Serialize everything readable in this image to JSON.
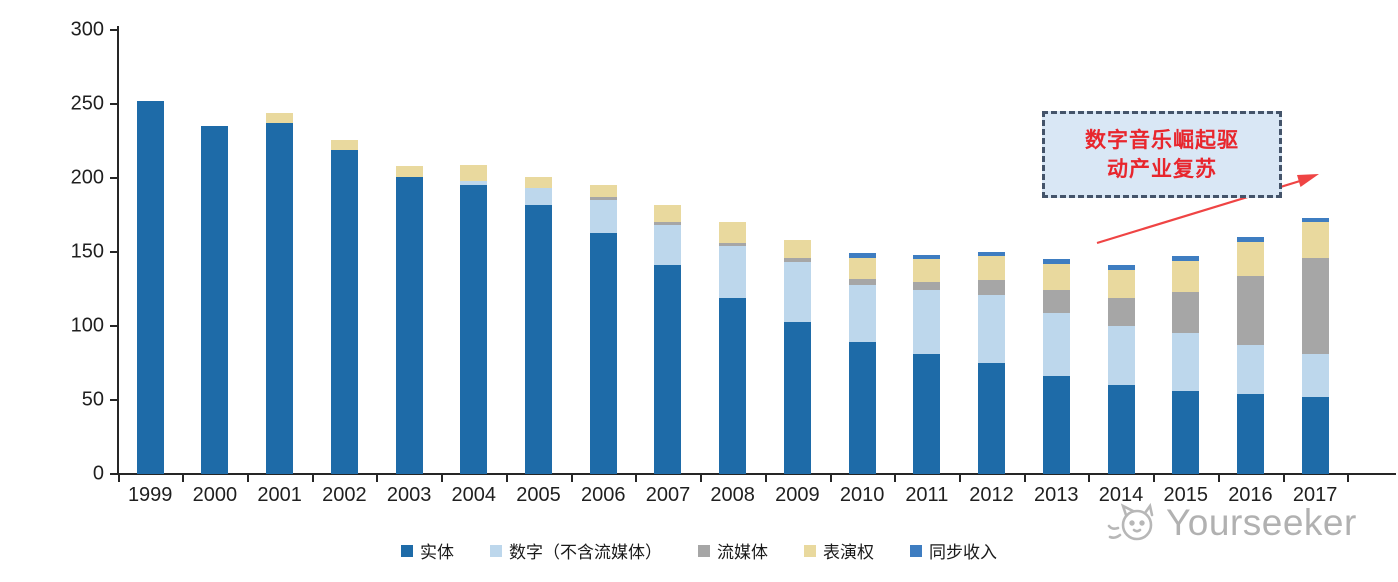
{
  "chart_data": {
    "type": "bar",
    "variant": "stacked",
    "title": "",
    "xlabel": "",
    "ylabel": "",
    "categories": [
      "1999",
      "2000",
      "2001",
      "2002",
      "2003",
      "2004",
      "2005",
      "2006",
      "2007",
      "2008",
      "2009",
      "2010",
      "2011",
      "2012",
      "2013",
      "2014",
      "2015",
      "2016",
      "2017"
    ],
    "series": [
      {
        "name": "实体",
        "color": "#1e6ba8",
        "values": [
          252,
          235,
          237,
          219,
          201,
          195,
          182,
          163,
          141,
          119,
          103,
          89,
          81,
          75,
          66,
          60,
          56,
          54,
          52
        ]
      },
      {
        "name": "数字（不含流媒体）",
        "color": "#bdd7ec",
        "values": [
          0,
          0,
          0,
          0,
          0,
          3,
          11,
          22,
          27,
          35,
          40,
          39,
          43,
          46,
          43,
          40,
          39,
          33,
          29
        ]
      },
      {
        "name": "流媒体",
        "color": "#a6a6a6",
        "values": [
          0,
          0,
          0,
          0,
          0,
          0,
          0,
          2,
          2,
          2,
          3,
          4,
          6,
          10,
          15,
          19,
          28,
          47,
          65
        ]
      },
      {
        "name": "表演权",
        "color": "#e9d99e",
        "values": [
          0,
          0,
          7,
          7,
          7,
          11,
          8,
          8,
          12,
          14,
          12,
          14,
          15,
          16,
          18,
          19,
          21,
          23,
          24
        ]
      },
      {
        "name": "同步收入",
        "color": "#3e7dc1",
        "values": [
          0,
          0,
          0,
          0,
          0,
          0,
          0,
          0,
          0,
          0,
          0,
          3,
          3,
          3,
          3,
          3,
          3,
          3,
          3
        ]
      }
    ],
    "ylim": [
      0,
      300
    ],
    "yticks": [
      0,
      50,
      100,
      150,
      200,
      250,
      300
    ],
    "grid": false,
    "legend_position": "bottom"
  },
  "annotation": {
    "line1": "数字音乐崛起驱",
    "line2": "动产业复苏",
    "fill_color": "#d9e7f5",
    "border_color": "#44546a",
    "text_color": "#e8262d",
    "arrow_color": "#ef4444"
  },
  "watermark": {
    "text": "Yourseeker"
  }
}
